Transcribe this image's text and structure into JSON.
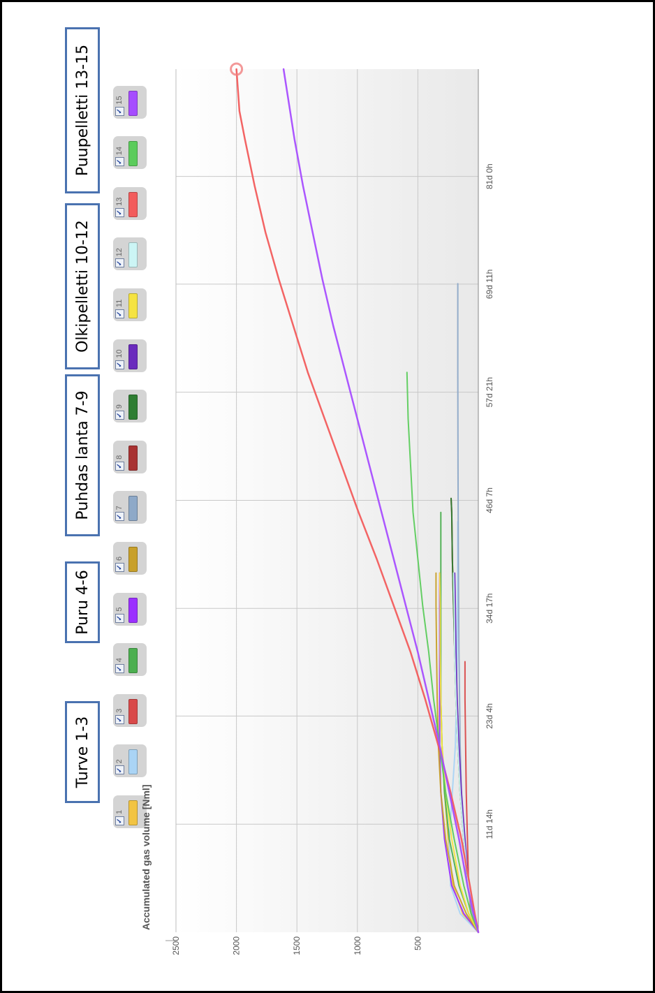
{
  "groups": [
    {
      "label": "Turve 1-3"
    },
    {
      "label": "Puru 4-6"
    },
    {
      "label": "Puhdas lanta 7-9"
    },
    {
      "label": "Olkipelletti 10-12"
    },
    {
      "label": "Puupelletti 13-15"
    }
  ],
  "legend": [
    {
      "num": "1",
      "color": "#f2c443"
    },
    {
      "num": "2",
      "color": "#aad4f5"
    },
    {
      "num": "3",
      "color": "#d94a4a"
    },
    {
      "num": "4",
      "color": "#4caf50"
    },
    {
      "num": "5",
      "color": "#9b30ff"
    },
    {
      "num": "6",
      "color": "#c8a02a"
    },
    {
      "num": "7",
      "color": "#8ea9c8"
    },
    {
      "num": "8",
      "color": "#a83232"
    },
    {
      "num": "9",
      "color": "#2e7d32"
    },
    {
      "num": "10",
      "color": "#6a2bbd"
    },
    {
      "num": "11",
      "color": "#f5e342"
    },
    {
      "num": "12",
      "color": "#ccf5f5"
    },
    {
      "num": "13",
      "color": "#f25c5c"
    },
    {
      "num": "14",
      "color": "#5ccc5c"
    },
    {
      "num": "15",
      "color": "#a64dff"
    }
  ],
  "chart_data": {
    "type": "line",
    "title": "",
    "xlabel": "",
    "ylabel": "Accumulated gas volume [Nml]",
    "x_unit": "days",
    "xlim": [
      0,
      92.5
    ],
    "ylim": [
      0,
      2500
    ],
    "x_ticks": [
      {
        "label": "11d 14h",
        "value": 11.58
      },
      {
        "label": "23d 4h",
        "value": 23.17
      },
      {
        "label": "34d 17h",
        "value": 34.71
      },
      {
        "label": "46d 7h",
        "value": 46.29
      },
      {
        "label": "57d 21h",
        "value": 57.88
      },
      {
        "label": "69d 11h",
        "value": 69.46
      },
      {
        "label": "81d 0h",
        "value": 81.0
      }
    ],
    "y_ticks": [
      500,
      1000,
      1500,
      2000,
      2500
    ],
    "grid": true,
    "series": [
      {
        "name": "1",
        "color": "#f2c443",
        "points": [
          [
            0,
            0
          ],
          [
            2,
            130
          ],
          [
            5,
            210
          ],
          [
            10,
            250
          ],
          [
            15,
            280
          ],
          [
            20,
            300
          ],
          [
            25,
            310
          ],
          [
            30,
            315
          ],
          [
            36,
            320
          ],
          [
            38.5,
            320
          ]
        ]
      },
      {
        "name": "2",
        "color": "#aad4f5",
        "points": [
          [
            0,
            0
          ],
          [
            2,
            150
          ],
          [
            5,
            230
          ],
          [
            10,
            240
          ],
          [
            15,
            215
          ],
          [
            20,
            190
          ],
          [
            25,
            180
          ],
          [
            30,
            175
          ],
          [
            40,
            170
          ],
          [
            44,
            170
          ]
        ]
      },
      {
        "name": "3",
        "color": "#d94a4a",
        "points": [
          [
            0,
            0
          ],
          [
            2,
            60
          ],
          [
            5,
            80
          ],
          [
            10,
            90
          ],
          [
            15,
            100
          ],
          [
            20,
            105
          ],
          [
            25,
            110
          ],
          [
            29,
            110
          ]
        ]
      },
      {
        "name": "4",
        "color": "#4caf50",
        "points": [
          [
            0,
            0
          ],
          [
            2,
            80
          ],
          [
            5,
            160
          ],
          [
            10,
            240
          ],
          [
            15,
            280
          ],
          [
            20,
            300
          ],
          [
            25,
            310
          ],
          [
            30,
            310
          ],
          [
            35,
            310
          ],
          [
            40,
            310
          ],
          [
            45,
            310
          ]
        ]
      },
      {
        "name": "5",
        "color": "#9b30ff",
        "points": [
          [
            0,
            0
          ],
          [
            2,
            120
          ],
          [
            5,
            220
          ],
          [
            10,
            280
          ],
          [
            15,
            310
          ],
          [
            20,
            320
          ],
          [
            25,
            320
          ],
          [
            30,
            320
          ],
          [
            35,
            320
          ],
          [
            38.5,
            320
          ]
        ]
      },
      {
        "name": "6",
        "color": "#c8a02a",
        "points": [
          [
            0,
            0
          ],
          [
            2,
            100
          ],
          [
            5,
            200
          ],
          [
            10,
            270
          ],
          [
            15,
            310
          ],
          [
            20,
            330
          ],
          [
            25,
            340
          ],
          [
            30,
            345
          ],
          [
            35,
            350
          ],
          [
            38.5,
            350
          ]
        ]
      },
      {
        "name": "7",
        "color": "#8ea9c8",
        "points": [
          [
            0,
            0
          ],
          [
            2,
            50
          ],
          [
            5,
            90
          ],
          [
            10,
            120
          ],
          [
            15,
            140
          ],
          [
            20,
            150
          ],
          [
            30,
            160
          ],
          [
            40,
            165
          ],
          [
            50,
            168
          ],
          [
            60,
            170
          ],
          [
            69.5,
            170
          ]
        ]
      },
      {
        "name": "8",
        "color": "#a83232",
        "points": [
          [
            0,
            0
          ],
          [
            2,
            40
          ],
          [
            5,
            80
          ],
          [
            10,
            120
          ],
          [
            15,
            150
          ],
          [
            20,
            170
          ],
          [
            25,
            185
          ],
          [
            30,
            195
          ],
          [
            35,
            205
          ],
          [
            40,
            215
          ],
          [
            45,
            220
          ],
          [
            46.5,
            225
          ]
        ]
      },
      {
        "name": "9",
        "color": "#2e7d32",
        "points": [
          [
            0,
            0
          ],
          [
            2,
            40
          ],
          [
            5,
            80
          ],
          [
            10,
            120
          ],
          [
            15,
            150
          ],
          [
            20,
            170
          ],
          [
            25,
            185
          ],
          [
            30,
            195
          ],
          [
            35,
            205
          ],
          [
            40,
            215
          ],
          [
            45,
            220
          ],
          [
            46.5,
            225
          ]
        ]
      },
      {
        "name": "10",
        "color": "#6a2bbd",
        "points": [
          [
            0,
            0
          ],
          [
            2,
            40
          ],
          [
            5,
            80
          ],
          [
            10,
            110
          ],
          [
            15,
            140
          ],
          [
            20,
            160
          ],
          [
            25,
            175
          ],
          [
            30,
            185
          ],
          [
            35,
            190
          ],
          [
            38.5,
            195
          ]
        ]
      },
      {
        "name": "11",
        "color": "#f5e342",
        "points": [
          [
            0,
            0
          ],
          [
            2,
            80
          ],
          [
            5,
            150
          ],
          [
            10,
            220
          ],
          [
            15,
            270
          ],
          [
            20,
            300
          ],
          [
            25,
            310
          ],
          [
            30,
            315
          ],
          [
            35,
            315
          ],
          [
            38.5,
            320
          ]
        ]
      },
      {
        "name": "12",
        "color": "#ccf5f5",
        "points": [
          [
            0,
            0
          ],
          [
            2,
            40
          ],
          [
            5,
            80
          ],
          [
            10,
            120
          ],
          [
            15,
            150
          ],
          [
            20,
            170
          ],
          [
            25,
            185
          ],
          [
            30,
            195
          ],
          [
            35,
            200
          ],
          [
            38.5,
            205
          ]
        ]
      },
      {
        "name": "13",
        "color": "#f25c5c",
        "points": [
          [
            0,
            0
          ],
          [
            2,
            30
          ],
          [
            5,
            70
          ],
          [
            10,
            140
          ],
          [
            15,
            230
          ],
          [
            20,
            330
          ],
          [
            25,
            440
          ],
          [
            30,
            560
          ],
          [
            35,
            700
          ],
          [
            40,
            840
          ],
          [
            45,
            990
          ],
          [
            50,
            1130
          ],
          [
            55,
            1270
          ],
          [
            60,
            1410
          ],
          [
            65,
            1530
          ],
          [
            70,
            1650
          ],
          [
            75,
            1760
          ],
          [
            80,
            1850
          ],
          [
            85,
            1930
          ],
          [
            88,
            1975
          ],
          [
            92.5,
            2000
          ]
        ]
      },
      {
        "name": "14",
        "color": "#5ccc5c",
        "points": [
          [
            0,
            0
          ],
          [
            2,
            60
          ],
          [
            5,
            120
          ],
          [
            10,
            200
          ],
          [
            15,
            270
          ],
          [
            20,
            320
          ],
          [
            25,
            370
          ],
          [
            30,
            410
          ],
          [
            35,
            460
          ],
          [
            40,
            500
          ],
          [
            45,
            540
          ],
          [
            50,
            560
          ],
          [
            55,
            580
          ],
          [
            60,
            590
          ]
        ]
      },
      {
        "name": "15",
        "color": "#a64dff",
        "points": [
          [
            0,
            0
          ],
          [
            2,
            40
          ],
          [
            5,
            90
          ],
          [
            10,
            160
          ],
          [
            15,
            240
          ],
          [
            20,
            320
          ],
          [
            25,
            410
          ],
          [
            30,
            500
          ],
          [
            35,
            600
          ],
          [
            40,
            700
          ],
          [
            45,
            800
          ],
          [
            50,
            900
          ],
          [
            55,
            1000
          ],
          [
            60,
            1100
          ],
          [
            65,
            1200
          ],
          [
            70,
            1290
          ],
          [
            75,
            1370
          ],
          [
            80,
            1450
          ],
          [
            85,
            1520
          ],
          [
            90,
            1580
          ],
          [
            92.5,
            1610
          ]
        ]
      }
    ],
    "highlight_point": {
      "series": "13",
      "x": 92.5,
      "y": 2000
    }
  }
}
